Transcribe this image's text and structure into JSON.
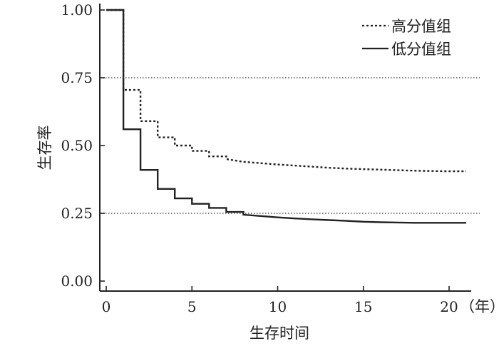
{
  "chart_data": {
    "type": "line",
    "ylabel": "生存率",
    "xlabel": "生存时间",
    "x_unit": "（年）",
    "xlim": [
      -0.5,
      21
    ],
    "ylim": [
      -0.05,
      1.02
    ],
    "x_ticks": [
      0,
      5,
      10,
      15,
      20
    ],
    "x_tick_labels": [
      "0",
      "5",
      "10",
      "15",
      "20"
    ],
    "y_ticks": [
      0.0,
      0.25,
      0.5,
      0.75,
      1.0
    ],
    "y_tick_labels": [
      "0.00",
      "0.25",
      "0.50",
      "0.75",
      "1.00"
    ],
    "reference_lines": [
      0.75,
      0.25
    ],
    "legend_position": "top-right",
    "series": [
      {
        "name": "高分值组",
        "style": "dotted",
        "color": "#222222",
        "points": [
          [
            0,
            1.0
          ],
          [
            1,
            1.0
          ],
          [
            1,
            0.705
          ],
          [
            2,
            0.705
          ],
          [
            2,
            0.59
          ],
          [
            3,
            0.59
          ],
          [
            3,
            0.53
          ],
          [
            4,
            0.53
          ],
          [
            4,
            0.5
          ],
          [
            5,
            0.5
          ],
          [
            5,
            0.48
          ],
          [
            6,
            0.48
          ],
          [
            6,
            0.46
          ],
          [
            7,
            0.46
          ],
          [
            7,
            0.45
          ],
          [
            8,
            0.44
          ],
          [
            9,
            0.435
          ],
          [
            10,
            0.43
          ],
          [
            11,
            0.426
          ],
          [
            12,
            0.422
          ],
          [
            13,
            0.418
          ],
          [
            14,
            0.415
          ],
          [
            15,
            0.413
          ],
          [
            16,
            0.411
          ],
          [
            17,
            0.409
          ],
          [
            18,
            0.407
          ],
          [
            19,
            0.406
          ],
          [
            20,
            0.405
          ],
          [
            21,
            0.405
          ]
        ]
      },
      {
        "name": "低分值组",
        "style": "solid",
        "color": "#222222",
        "points": [
          [
            0,
            1.0
          ],
          [
            1,
            1.0
          ],
          [
            1,
            0.56
          ],
          [
            2,
            0.56
          ],
          [
            2,
            0.41
          ],
          [
            3,
            0.41
          ],
          [
            3,
            0.34
          ],
          [
            4,
            0.34
          ],
          [
            4,
            0.305
          ],
          [
            5,
            0.305
          ],
          [
            5,
            0.285
          ],
          [
            6,
            0.285
          ],
          [
            6,
            0.27
          ],
          [
            7,
            0.27
          ],
          [
            7,
            0.255
          ],
          [
            8,
            0.255
          ],
          [
            8,
            0.245
          ],
          [
            9,
            0.24
          ],
          [
            10,
            0.235
          ],
          [
            11,
            0.231
          ],
          [
            12,
            0.228
          ],
          [
            13,
            0.225
          ],
          [
            14,
            0.222
          ],
          [
            15,
            0.219
          ],
          [
            16,
            0.217
          ],
          [
            17,
            0.216
          ],
          [
            18,
            0.215
          ],
          [
            19,
            0.215
          ],
          [
            20,
            0.215
          ],
          [
            21,
            0.215
          ]
        ]
      }
    ]
  }
}
